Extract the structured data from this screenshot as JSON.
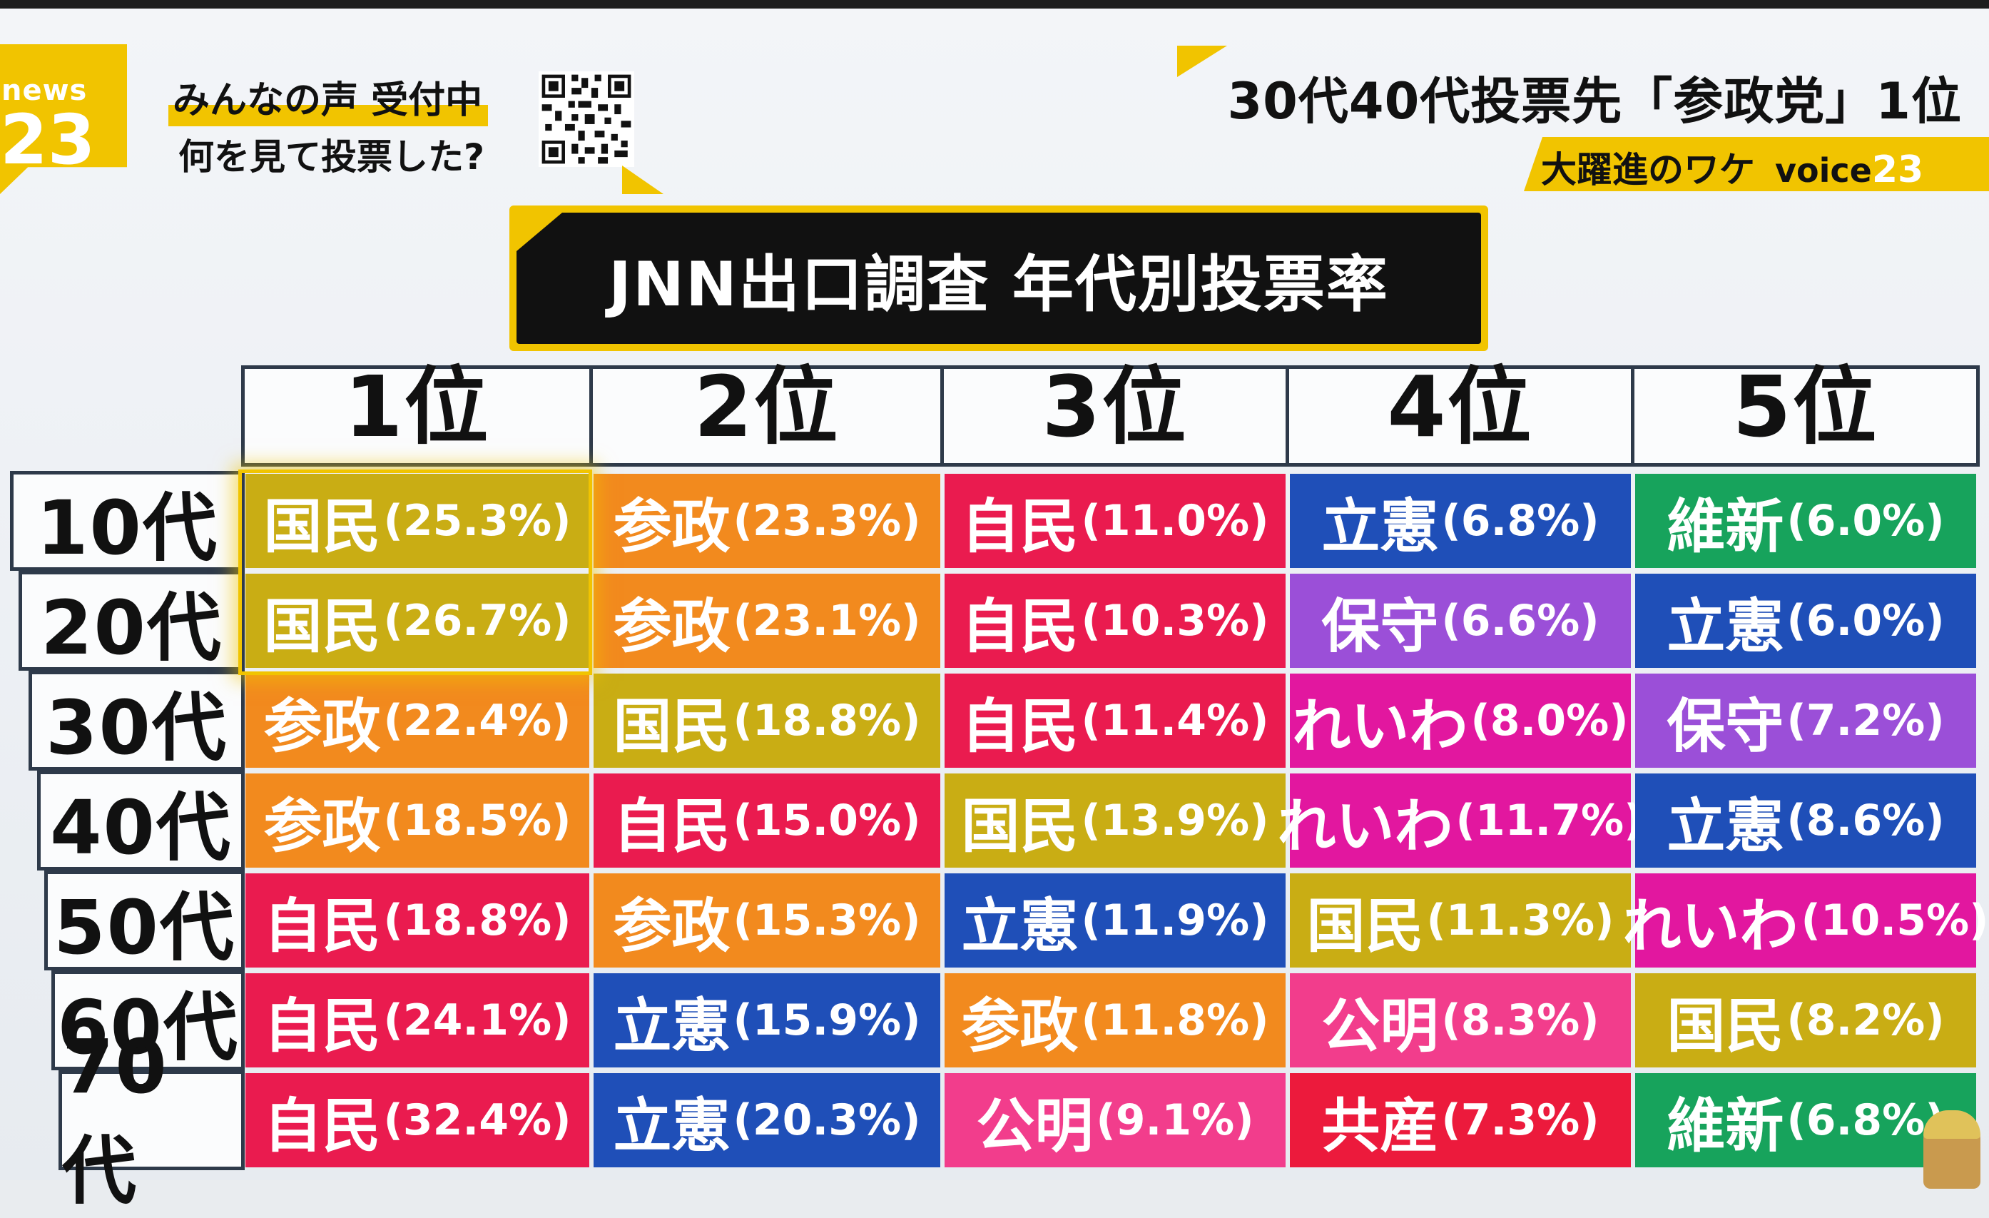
{
  "header": {
    "logo_top": "news",
    "logo_num": "23",
    "voice_line1": "みんなの声 受付中",
    "voice_line2": "何を見て投票した?",
    "title": "30代40代投票先「参政党」1位",
    "subtitle": "大躍進のワケ",
    "subtitle_brand": "voice",
    "subtitle_num": "23"
  },
  "banner": {
    "title": "JNN出口調査 年代別投票率"
  },
  "table": {
    "columns": [
      "1位",
      "2位",
      "3位",
      "4位",
      "5位"
    ],
    "rows": [
      {
        "label": "10代",
        "cells": [
          {
            "party": "国民",
            "pct": "(25.3%)"
          },
          {
            "party": "参政",
            "pct": "(23.3%)"
          },
          {
            "party": "自民",
            "pct": "(11.0%)"
          },
          {
            "party": "立憲",
            "pct": "(6.8%)"
          },
          {
            "party": "維新",
            "pct": "(6.0%)"
          }
        ]
      },
      {
        "label": "20代",
        "cells": [
          {
            "party": "国民",
            "pct": "(26.7%)"
          },
          {
            "party": "参政",
            "pct": "(23.1%)"
          },
          {
            "party": "自民",
            "pct": "(10.3%)"
          },
          {
            "party": "保守",
            "pct": "(6.6%)"
          },
          {
            "party": "立憲",
            "pct": "(6.0%)"
          }
        ]
      },
      {
        "label": "30代",
        "cells": [
          {
            "party": "参政",
            "pct": "(22.4%)"
          },
          {
            "party": "国民",
            "pct": "(18.8%)"
          },
          {
            "party": "自民",
            "pct": "(11.4%)"
          },
          {
            "party": "れいわ",
            "pct": "(8.0%)"
          },
          {
            "party": "保守",
            "pct": "(7.2%)"
          }
        ]
      },
      {
        "label": "40代",
        "cells": [
          {
            "party": "参政",
            "pct": "(18.5%)"
          },
          {
            "party": "自民",
            "pct": "(15.0%)"
          },
          {
            "party": "国民",
            "pct": "(13.9%)"
          },
          {
            "party": "れいわ",
            "pct": "(11.7%)"
          },
          {
            "party": "立憲",
            "pct": "(8.6%)"
          }
        ]
      },
      {
        "label": "50代",
        "cells": [
          {
            "party": "自民",
            "pct": "(18.8%)"
          },
          {
            "party": "参政",
            "pct": "(15.3%)"
          },
          {
            "party": "立憲",
            "pct": "(11.9%)"
          },
          {
            "party": "国民",
            "pct": "(11.3%)"
          },
          {
            "party": "れいわ",
            "pct": "(10.5%)"
          }
        ]
      },
      {
        "label": "60代",
        "cells": [
          {
            "party": "自民",
            "pct": "(24.1%)"
          },
          {
            "party": "立憲",
            "pct": "(15.9%)"
          },
          {
            "party": "参政",
            "pct": "(11.8%)"
          },
          {
            "party": "公明",
            "pct": "(8.3%)"
          },
          {
            "party": "国民",
            "pct": "(8.2%)"
          }
        ]
      },
      {
        "label": "70代",
        "cells": [
          {
            "party": "自民",
            "pct": "(32.4%)"
          },
          {
            "party": "立憲",
            "pct": "(20.3%)"
          },
          {
            "party": "公明",
            "pct": "(9.1%)"
          },
          {
            "party": "共産",
            "pct": "(7.3%)"
          },
          {
            "party": "維新",
            "pct": "(6.8%)"
          }
        ]
      }
    ]
  },
  "party_colors": {
    "国民": "#c9ad14",
    "参政": "#f28a1e",
    "自民": "#ea1b4f",
    "立憲": "#1f4fb8",
    "維新": "#17a35c",
    "保守": "#9b4fd8",
    "れいわ": "#e2179f",
    "公明": "#f23d8c",
    "共産": "#ec1a3c"
  },
  "highlight_color": "#f1c400"
}
